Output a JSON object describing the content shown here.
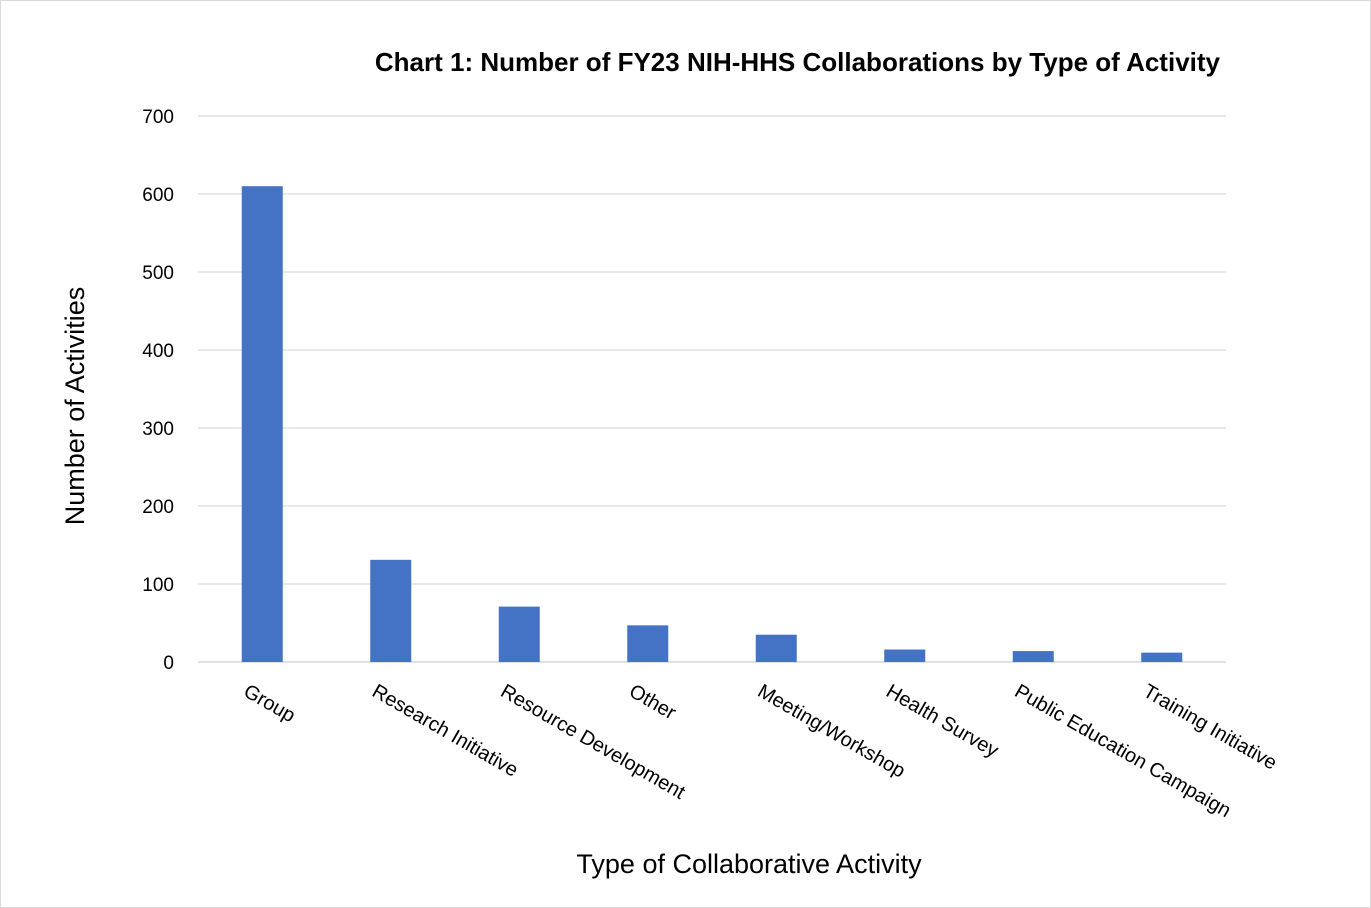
{
  "chart_data": {
    "type": "bar",
    "title": "Chart 1: Number of FY23 NIH-HHS Collaborations by Type of Activity",
    "xlabel": "Type of Collaborative Activity",
    "ylabel": "Number of Activities",
    "categories": [
      "Group",
      "Research Initiative",
      "Resource Development",
      "Other",
      "Meeting/Workshop",
      "Health Survey",
      "Public Education Campaign",
      "Training Initiative"
    ],
    "values": [
      610,
      131,
      71,
      47,
      35,
      16,
      14,
      12
    ],
    "ylim": [
      0,
      700
    ],
    "yticks": [
      "0",
      "100",
      "200",
      "300",
      "400",
      "500",
      "600",
      "700"
    ],
    "grid": true,
    "legend": "none",
    "bar_color": "#4472C4",
    "grid_color": "#d9d9d9"
  }
}
